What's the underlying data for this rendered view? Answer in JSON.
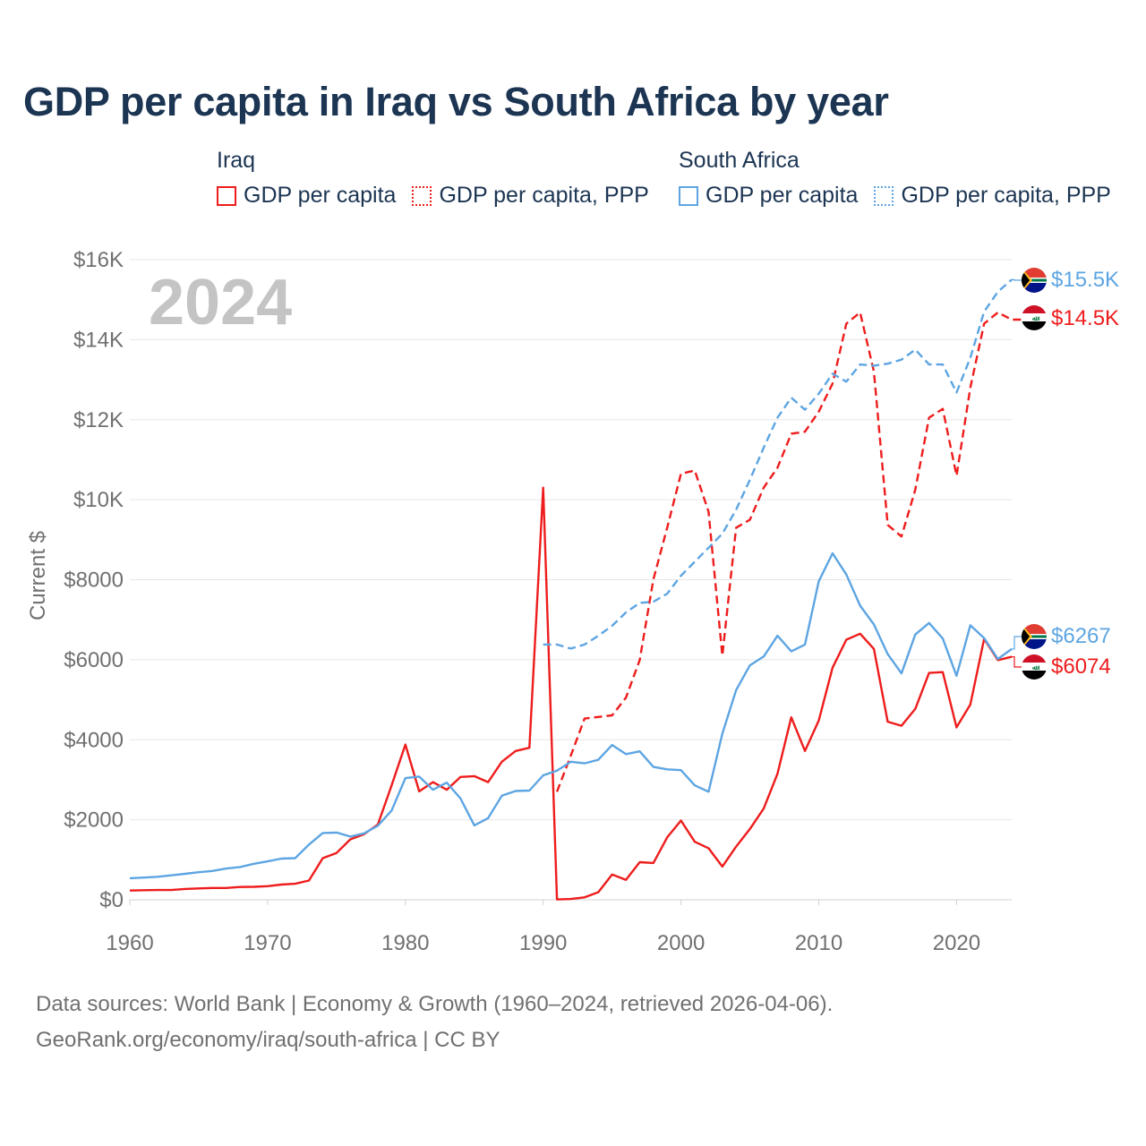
{
  "title": "GDP per capita in Iraq vs South Africa by year",
  "legend": {
    "groups": [
      {
        "country": "Iraq",
        "items": [
          {
            "label": "GDP per capita",
            "style": "solid",
            "color": "#ee1c1c"
          },
          {
            "label": "GDP per capita, PPP",
            "style": "dotted",
            "color": "#ee1c1c"
          }
        ]
      },
      {
        "country": "South Africa",
        "items": [
          {
            "label": "GDP per capita",
            "style": "solid",
            "color": "#5da5e2"
          },
          {
            "label": "GDP per capita, PPP",
            "style": "dotted",
            "color": "#5da5e2"
          }
        ]
      }
    ]
  },
  "year_watermark": "2024",
  "footer": {
    "line1": "Data sources: World Bank | Economy & Growth (1960–2024, retrieved 2026-04-06).",
    "line2": "GeoRank.org/economy/iraq/south-africa | CC BY"
  },
  "colors": {
    "iraq": "#ee1c1c",
    "south_africa": "#5da5e2",
    "axis_text": "#707070",
    "title": "#1c3553",
    "grid": "#e6e6e6"
  },
  "chart_data": {
    "type": "line",
    "title": "GDP per capita in Iraq vs South Africa by year",
    "xlabel": "",
    "ylabel": "Current $",
    "xlim": [
      1960,
      2024
    ],
    "ylim": [
      0,
      16000
    ],
    "x_ticks": [
      1960,
      1970,
      1980,
      1990,
      2000,
      2010,
      2020
    ],
    "y_ticks": [
      {
        "value": 0,
        "label": "$0"
      },
      {
        "value": 2000,
        "label": "$2000"
      },
      {
        "value": 4000,
        "label": "$4000"
      },
      {
        "value": 6000,
        "label": "$6000"
      },
      {
        "value": 8000,
        "label": "$8000"
      },
      {
        "value": 10000,
        "label": "$10K"
      },
      {
        "value": 12000,
        "label": "$12K"
      },
      {
        "value": 14000,
        "label": "$14K"
      },
      {
        "value": 16000,
        "label": "$16K"
      }
    ],
    "grid": true,
    "series": [
      {
        "name": "Iraq GDP per capita",
        "country": "Iraq",
        "style": "solid",
        "color": "#ee1c1c",
        "start_year": 1960,
        "values": [
          230,
          240,
          245,
          245,
          270,
          285,
          295,
          295,
          320,
          325,
          340,
          380,
          400,
          480,
          1040,
          1170,
          1510,
          1640,
          1880,
          2860,
          3880,
          2710,
          2940,
          2750,
          3070,
          3090,
          2940,
          3450,
          3720,
          3800,
          10300,
          10,
          20,
          60,
          190,
          630,
          500,
          940,
          920,
          1560,
          1980,
          1450,
          1290,
          830,
          1330,
          1770,
          2280,
          3150,
          4560,
          3720,
          4480,
          5800,
          6500,
          6650,
          6270,
          4450,
          4350,
          4770,
          5670,
          5690,
          4310,
          4880,
          6520,
          5990,
          6074
        ],
        "end_label": "$6074",
        "end_value": 6074
      },
      {
        "name": "Iraq GDP per capita, PPP",
        "country": "Iraq",
        "style": "dashed",
        "color": "#ee1c1c",
        "start_year": 1991,
        "values": [
          2700,
          3600,
          4530,
          4570,
          4610,
          5050,
          5990,
          8010,
          9300,
          10650,
          10730,
          9700,
          6100,
          9300,
          9500,
          10300,
          10800,
          11650,
          11700,
          12200,
          12900,
          14400,
          14680,
          13200,
          9370,
          9080,
          10250,
          12050,
          12270,
          10600,
          12800,
          14400,
          14680,
          14500,
          14500
        ],
        "end_label": "$14.5K",
        "end_value": 14500
      },
      {
        "name": "South Africa GDP per capita",
        "country": "South Africa",
        "style": "solid",
        "color": "#5da5e2",
        "start_year": 1960,
        "values": [
          540,
          555,
          575,
          610,
          650,
          690,
          720,
          780,
          820,
          900,
          960,
          1030,
          1040,
          1380,
          1670,
          1680,
          1580,
          1660,
          1850,
          2230,
          3040,
          3080,
          2750,
          2930,
          2530,
          1860,
          2040,
          2600,
          2720,
          2730,
          3110,
          3230,
          3450,
          3410,
          3500,
          3870,
          3640,
          3710,
          3320,
          3260,
          3240,
          2860,
          2700,
          4150,
          5240,
          5860,
          6080,
          6600,
          6210,
          6380,
          7960,
          8660,
          8130,
          7350,
          6880,
          6140,
          5660,
          6630,
          6920,
          6530,
          5600,
          6860,
          6540,
          6020,
          6267
        ],
        "end_label": "$6267",
        "end_value": 6267
      },
      {
        "name": "South Africa GDP per capita, PPP",
        "country": "South Africa",
        "style": "dashed",
        "color": "#5da5e2",
        "start_year": 1990,
        "values": [
          6380,
          6380,
          6280,
          6380,
          6600,
          6850,
          7180,
          7420,
          7450,
          7650,
          8100,
          8450,
          8800,
          9150,
          9750,
          10500,
          11300,
          12050,
          12550,
          12250,
          12650,
          13150,
          12950,
          13380,
          13350,
          13400,
          13500,
          13750,
          13380,
          13380,
          12680,
          13550,
          14700,
          15200,
          15500
        ],
        "end_label": "$15.5K",
        "end_value": 15500
      }
    ]
  }
}
